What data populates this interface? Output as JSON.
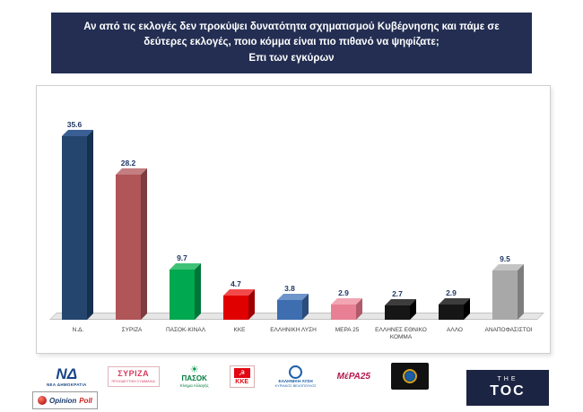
{
  "title": {
    "question": "Αν από τις εκλογές δεν προκύψει δυνατότητα σχηματισμού Κυβέρνησης και πάμε σε δεύτερες εκλογές, ποιο κόμμα είναι πιο πιθανό να ψηφίζατε;",
    "basis": "Επι των εγκύρων"
  },
  "chart_data": {
    "type": "bar",
    "title": "Αν από τις εκλογές δεν προκύψει δυνατότητα σχηματισμού Κυβέρνησης και πάμε σε δεύτερες εκλογές, ποιο κόμμα είναι πιο πιθανό να ψηφίζατε; Επι των εγκύρων",
    "categories": [
      "Ν.Δ.",
      "ΣΥΡΙΖΑ",
      "ΠΑΣΟΚ-ΚΙΝΑΛ",
      "ΚΚΕ",
      "ΕΛΛΗΝΙΚΗ ΛΥΣΗ",
      "ΜΕΡΑ 25",
      "ΕΛΛΗΝΕΣ ΕΘΝΙΚΟ ΚΟΜΜΑ",
      "ΑΛΛΟ",
      "ΑΝΑΠΟΦΑΣΙΣΤΟΙ"
    ],
    "values": [
      35.6,
      28.2,
      9.7,
      4.7,
      3.8,
      2.9,
      2.7,
      2.9,
      9.5
    ],
    "series": [
      {
        "label": "Ν.Δ.",
        "value": 35.6,
        "color": "#24466e",
        "top": "#3a5f94",
        "side": "#16304f"
      },
      {
        "label": "ΣΥΡΙΖΑ",
        "value": 28.2,
        "color": "#b05558",
        "top": "#c47e81",
        "side": "#7d3c3f"
      },
      {
        "label": "ΠΑΣΟΚ-ΚΙΝΑΛ",
        "value": 9.7,
        "color": "#00a84f",
        "top": "#3fc277",
        "side": "#00753a"
      },
      {
        "label": "ΚΚΕ",
        "value": 4.7,
        "color": "#e00000",
        "top": "#f24a4a",
        "side": "#9c0000"
      },
      {
        "label": "ΕΛΛΗΝΙΚΗ ΛΥΣΗ",
        "value": 3.8,
        "color": "#3e6db0",
        "top": "#6e95c9",
        "side": "#2b4c7c"
      },
      {
        "label": "ΜΕΡΑ 25",
        "value": 2.9,
        "color": "#e87f93",
        "top": "#f2a6b4",
        "side": "#b05a6b"
      },
      {
        "label": "ΕΛΛΗΝΕΣ ΕΘΝΙΚΟ ΚΟΜΜΑ",
        "value": 2.7,
        "color": "#161616",
        "top": "#3d3d3d",
        "side": "#000000"
      },
      {
        "label": "ΑΛΛΟ",
        "value": 2.9,
        "color": "#161616",
        "top": "#3d3d3d",
        "side": "#000000"
      },
      {
        "label": "ΑΝΑΠΟΦΑΣΙΣΤΟΙ",
        "value": 9.5,
        "color": "#a8a8a8",
        "top": "#c4c4c4",
        "side": "#7d7d7d"
      }
    ],
    "ylim": [
      0,
      40
    ],
    "grid": false,
    "legend": false,
    "value_label_color": "#1f3864"
  },
  "logos": {
    "nd": {
      "monogram": "ΝΔ",
      "caption": "ΝΕΑ ΔΗΜΟΚΡΑΤΙΑ"
    },
    "syriza": {
      "name": "ΣΥΡΙΖΑ",
      "caption": "ΠΡΟΟΔΕΥΤΙΚΗ ΣΥΜΜΑΧΙΑ"
    },
    "pasok": {
      "sun": "☀",
      "name": "ΠΑΣΟΚ",
      "caption": "Κίνημα Αλλαγής"
    },
    "kke": {
      "emblem": "☭",
      "name": "ΚΚΕ"
    },
    "el_lysi": {
      "name": "ΕΛΛΗΝΙΚΗ ΛΥΣΗ",
      "caption": "ΚΥΡΙΑΚΟΣ ΒΕΛΟΠΟΥΛΟΣ"
    },
    "mera25": {
      "name": "ΜέΡΑ25"
    }
  },
  "branding": {
    "pollster_a": "Opinion",
    "pollster_b": "Poll",
    "outlet_top": "THE",
    "outlet_main": "TOC"
  },
  "colors": {
    "title_bg": "#232e52",
    "toc_bg": "#1b2442",
    "panel_border": "#cfcfcf"
  }
}
